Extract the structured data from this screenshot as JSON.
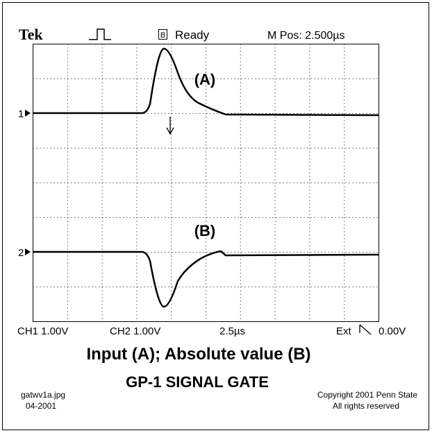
{
  "header": {
    "brand": "Tek",
    "status_box": "B",
    "status": "Ready",
    "position": "M Pos: 2.500µs"
  },
  "screen": {
    "channel_1_marker": "1",
    "channel_2_marker": "2",
    "trace_a_label": "(A)",
    "trace_b_label": "(B)"
  },
  "readout": {
    "ch1": "CH1 1.00V",
    "ch2": "CH2 1.00V",
    "timebase": "2.5µs",
    "trigger_source": "Ext",
    "trigger_level": "0.00V"
  },
  "caption": {
    "title": "Input (A); Absolute value (B)",
    "subtitle": "GP-1 SIGNAL GATE"
  },
  "footer": {
    "filename": "gatwv1a.jpg",
    "date": "04-2001",
    "copyright": "Copyright 2001 Penn State",
    "rights": "All rights reserved"
  }
}
